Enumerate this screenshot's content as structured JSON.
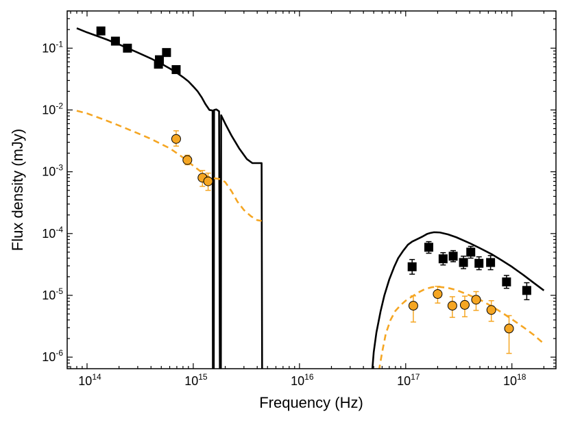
{
  "chart_data": {
    "type": "scatter",
    "title": "",
    "xlabel": "Frequency (Hz)",
    "ylabel": "Flux density (mJy)",
    "xscale": "log",
    "yscale": "log",
    "xlim": [
      65000000000000.0,
      2.6e+18
    ],
    "ylim": [
      6.5e-07,
      0.4
    ],
    "grid": false,
    "legend": "none",
    "x_tick_labels": [
      {
        "value": 100000000000000.0,
        "base": "10",
        "exp": "14"
      },
      {
        "value": 1000000000000000.0,
        "base": "10",
        "exp": "15"
      },
      {
        "value": 1e+16,
        "base": "10",
        "exp": "16"
      },
      {
        "value": 1e+17,
        "base": "10",
        "exp": "17"
      },
      {
        "value": 1e+18,
        "base": "10",
        "exp": "18"
      }
    ],
    "y_tick_labels": [
      {
        "value": 1e-06,
        "base": "10",
        "exp": "-6"
      },
      {
        "value": 1e-05,
        "base": "10",
        "exp": "-5"
      },
      {
        "value": 0.0001,
        "base": "10",
        "exp": "-4"
      },
      {
        "value": 0.001,
        "base": "10",
        "exp": "-3"
      },
      {
        "value": 0.01,
        "base": "10",
        "exp": "-2"
      },
      {
        "value": 0.1,
        "base": "10",
        "exp": "-1"
      }
    ],
    "series": [
      {
        "name": "black-squares",
        "marker": "square",
        "color": "#000000",
        "points": [
          {
            "x": 135000000000000.0,
            "y": 0.19
          },
          {
            "x": 185000000000000.0,
            "y": 0.13
          },
          {
            "x": 240000000000000.0,
            "y": 0.1
          },
          {
            "x": 470000000000000.0,
            "y": 0.055
          },
          {
            "x": 480000000000000.0,
            "y": 0.065
          },
          {
            "x": 560000000000000.0,
            "y": 0.085
          },
          {
            "x": 690000000000000.0,
            "y": 0.045
          },
          {
            "x": 1.15e+17,
            "y": 2.9e-05,
            "ylo": 2.2e-05,
            "yhi": 3.8e-05
          },
          {
            "x": 1.65e+17,
            "y": 6e-05,
            "ylo": 4.8e-05,
            "yhi": 7.4e-05
          },
          {
            "x": 2.25e+17,
            "y": 3.9e-05,
            "ylo": 3.1e-05,
            "yhi": 4.9e-05
          },
          {
            "x": 2.8e+17,
            "y": 4.3e-05,
            "ylo": 3.5e-05,
            "yhi": 5.3e-05
          },
          {
            "x": 3.5e+17,
            "y": 3.4e-05,
            "ylo": 2.7e-05,
            "yhi": 4.3e-05
          },
          {
            "x": 4.1e+17,
            "y": 5e-05,
            "ylo": 4e-05,
            "yhi": 6.2e-05
          },
          {
            "x": 4.9e+17,
            "y": 3.3e-05,
            "ylo": 2.6e-05,
            "yhi": 4.2e-05
          },
          {
            "x": 6.3e+17,
            "y": 3.4e-05,
            "ylo": 2.6e-05,
            "yhi": 4.4e-05
          },
          {
            "x": 8.9e+17,
            "y": 1.65e-05,
            "ylo": 1.3e-05,
            "yhi": 2.1e-05
          },
          {
            "x": 1.38e+18,
            "y": 1.2e-05,
            "ylo": 8.5e-06,
            "yhi": 1.6e-05
          }
        ]
      },
      {
        "name": "orange-circles",
        "marker": "circle",
        "color": "#f5a623",
        "points": [
          {
            "x": 690000000000000.0,
            "y": 0.0034,
            "ylo": 0.0026,
            "yhi": 0.0046
          },
          {
            "x": 880000000000000.0,
            "y": 0.00155,
            "ylo": 0.0013,
            "yhi": 0.00185
          },
          {
            "x": 1220000000000000.0,
            "y": 0.0008,
            "ylo": 0.00058,
            "yhi": 0.00105
          },
          {
            "x": 1380000000000000.0,
            "y": 0.0007,
            "ylo": 0.0005,
            "yhi": 0.00095
          },
          {
            "x": 1.18e+17,
            "y": 6.8e-06,
            "ylo": 3.7e-06,
            "yhi": 9.8e-06
          },
          {
            "x": 2e+17,
            "y": 1.05e-05,
            "ylo": 7.5e-06,
            "yhi": 1.4e-05
          },
          {
            "x": 2.75e+17,
            "y": 6.8e-06,
            "ylo": 4.4e-06,
            "yhi": 9.5e-06
          },
          {
            "x": 3.6e+17,
            "y": 7e-06,
            "ylo": 4.5e-06,
            "yhi": 9.7e-06
          },
          {
            "x": 4.6e+17,
            "y": 8.5e-06,
            "ylo": 5.7e-06,
            "yhi": 1.15e-05
          },
          {
            "x": 6.4e+17,
            "y": 5.8e-06,
            "ylo": 3.8e-06,
            "yhi": 8.2e-06
          },
          {
            "x": 9.4e+17,
            "y": 2.9e-06,
            "ylo": 1.15e-06,
            "yhi": 4.7e-06
          }
        ]
      }
    ],
    "lines": [
      {
        "name": "black-model-curve",
        "color": "#000000",
        "style": "solid",
        "width": 2.6,
        "points": [
          [
            80000000000000.0,
            0.21
          ],
          [
            100000000000000.0,
            0.18
          ],
          [
            150000000000000.0,
            0.14
          ],
          [
            200000000000000.0,
            0.115
          ],
          [
            300000000000000.0,
            0.085
          ],
          [
            400000000000000.0,
            0.068
          ],
          [
            500000000000000.0,
            0.056
          ],
          [
            600000000000000.0,
            0.047
          ],
          [
            700000000000000.0,
            0.04
          ],
          [
            800000000000000.0,
            0.034
          ],
          [
            900000000000000.0,
            0.029
          ],
          [
            1000000000000000.0,
            0.024
          ],
          [
            1100000000000000.0,
            0.02
          ],
          [
            1200000000000000.0,
            0.016
          ],
          [
            1300000000000000.0,
            0.0125
          ],
          [
            1420000000000000.0,
            0.01
          ],
          [
            1520000000000000.0,
            0.0098
          ],
          [
            1530000000000000.0,
            5e-07
          ],
          [
            1560000000000000.0,
            5e-07
          ],
          [
            1570000000000000.0,
            0.01
          ],
          [
            1650000000000000.0,
            0.0102
          ],
          [
            1750000000000000.0,
            0.0095
          ],
          [
            1780000000000000.0,
            5e-07
          ],
          [
            1820000000000000.0,
            5e-07
          ],
          [
            1830000000000000.0,
            0.0082
          ],
          [
            2000000000000000.0,
            0.006
          ],
          [
            2300000000000000.0,
            0.0038
          ],
          [
            2700000000000000.0,
            0.0024
          ],
          [
            3200000000000000.0,
            0.0016
          ],
          [
            3600000000000000.0,
            0.00138
          ],
          [
            4400000000000000.0,
            0.00138
          ],
          [
            4450000000000000.0,
            5e-07
          ]
        ]
      },
      {
        "name": "black-model-curve-xray",
        "color": "#000000",
        "style": "solid",
        "width": 2.6,
        "points": [
          [
            4.8e+16,
            5e-07
          ],
          [
            5e+16,
            1.2e-06
          ],
          [
            5.3e+16,
            2.5e-06
          ],
          [
            5.8e+16,
            5.5e-06
          ],
          [
            6.3e+16,
            1e-05
          ],
          [
            7e+16,
            1.8e-05
          ],
          [
            7.8e+16,
            2.9e-05
          ],
          [
            8.5e+16,
            4e-05
          ],
          [
            9.5e+16,
            5.3e-05
          ],
          [
            1.05e+17,
            6.6e-05
          ],
          [
            1.15e+17,
            7.4e-05
          ],
          [
            1.3e+17,
            8.2e-05
          ],
          [
            1.45e+17,
            9e-05
          ],
          [
            1.6e+17,
            9.9e-05
          ],
          [
            1.7e+17,
            0.000102
          ],
          [
            1.85e+17,
            0.000105
          ],
          [
            2.1e+17,
            0.000104
          ],
          [
            2.5e+17,
            9.7e-05
          ],
          [
            3e+17,
            8.7e-05
          ],
          [
            4e+17,
            7e-05
          ],
          [
            5e+17,
            5.8e-05
          ],
          [
            6.5e+17,
            4.6e-05
          ],
          [
            8e+17,
            3.7e-05
          ],
          [
            1e+18,
            2.9e-05
          ],
          [
            1.3e+18,
            2.1e-05
          ],
          [
            1.6e+18,
            1.6e-05
          ],
          [
            2e+18,
            1.2e-05
          ]
        ]
      },
      {
        "name": "orange-model-curve",
        "color": "#f5a623",
        "style": "dashed",
        "width": 2.6,
        "points": [
          [
            80000000000000.0,
            0.0097
          ],
          [
            100000000000000.0,
            0.0088
          ],
          [
            150000000000000.0,
            0.0068
          ],
          [
            200000000000000.0,
            0.0056
          ],
          [
            300000000000000.0,
            0.0042
          ],
          [
            400000000000000.0,
            0.0034
          ],
          [
            500000000000000.0,
            0.0028
          ],
          [
            600000000000000.0,
            0.0024
          ],
          [
            700000000000000.0,
            0.002
          ],
          [
            800000000000000.0,
            0.0017
          ],
          [
            900000000000000.0,
            0.00145
          ],
          [
            1000000000000000.0,
            0.00125
          ],
          [
            1200000000000000.0,
            0.00098
          ],
          [
            1400000000000000.0,
            0.00082
          ],
          [
            1600000000000000.0,
            0.00078
          ],
          [
            1800000000000000.0,
            0.00076
          ],
          [
            2000000000000000.0,
            0.00068
          ],
          [
            2300000000000000.0,
            0.00048
          ],
          [
            2600000000000000.0,
            0.00033
          ],
          [
            3000000000000000.0,
            0.00024
          ],
          [
            3500000000000000.0,
            0.00019
          ],
          [
            4000000000000000.0,
            0.000165
          ],
          [
            4400000000000000.0,
            0.00016
          ]
        ]
      },
      {
        "name": "orange-model-curve-xray",
        "color": "#f5a623",
        "style": "dashed",
        "width": 2.6,
        "points": [
          [
            5.6e+16,
            6e-07
          ],
          [
            6e+16,
            1.2e-06
          ],
          [
            6.5e+16,
            2.4e-06
          ],
          [
            7.2e+16,
            4e-06
          ],
          [
            8e+16,
            5.6e-06
          ],
          [
            9e+16,
            7e-06
          ],
          [
            1e+17,
            8.2e-06
          ],
          [
            1.15e+17,
            9.6e-06
          ],
          [
            1.3e+17,
            1.1e-05
          ],
          [
            1.5e+17,
            1.25e-05
          ],
          [
            1.75e+17,
            1.35e-05
          ],
          [
            2e+17,
            1.38e-05
          ],
          [
            2.5e+17,
            1.32e-05
          ],
          [
            3e+17,
            1.22e-05
          ],
          [
            4e+17,
            1e-05
          ],
          [
            5e+17,
            8.5e-06
          ],
          [
            6.5e+17,
            6.6e-06
          ],
          [
            8e+17,
            5.3e-06
          ],
          [
            1e+18,
            4.1e-06
          ],
          [
            1.3e+18,
            3e-06
          ],
          [
            1.6e+18,
            2.3e-06
          ],
          [
            2e+18,
            1.65e-06
          ]
        ]
      }
    ]
  }
}
